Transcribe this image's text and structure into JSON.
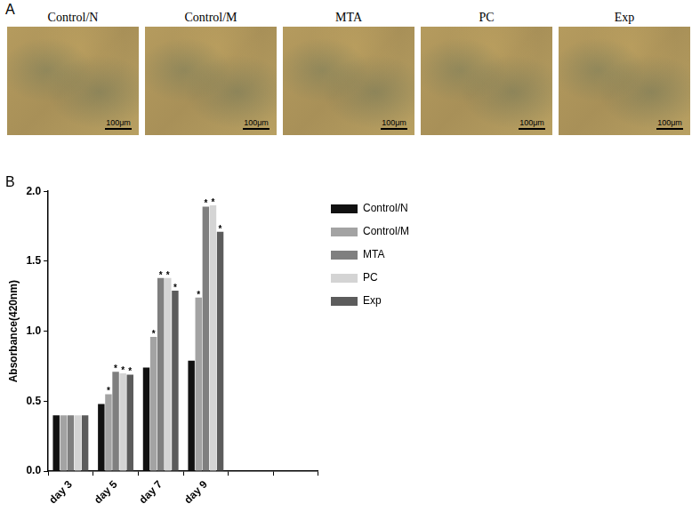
{
  "panel_labels": [
    "A",
    "B"
  ],
  "panel_a": {
    "images": [
      {
        "label": "Control/N",
        "scale_bar": "100μm"
      },
      {
        "label": "Control/M",
        "scale_bar": "100μm"
      },
      {
        "label": "MTA",
        "scale_bar": "100μm"
      },
      {
        "label": "PC",
        "scale_bar": "100μm"
      },
      {
        "label": "Exp",
        "scale_bar": "100μm"
      }
    ]
  },
  "chart_data": {
    "type": "bar",
    "y_label": "Absorbance(420nm)",
    "categories": [
      "day 3",
      "day 5",
      "day 7",
      "day 9",
      null,
      null
    ],
    "series": [
      {
        "name": "Control/N",
        "color": "#111111",
        "values": [
          0.4,
          0.48,
          0.74,
          0.79,
          null,
          null
        ]
      },
      {
        "name": "Control/M",
        "color": "#a3a3a3",
        "values": [
          0.4,
          0.55,
          0.96,
          1.24,
          null,
          null
        ],
        "significance": [
          null,
          "*",
          "*",
          "*",
          null,
          null
        ]
      },
      {
        "name": "MTA",
        "color": "#7f7f7f",
        "values": [
          0.4,
          0.71,
          1.38,
          1.89,
          null,
          null
        ],
        "significance": [
          null,
          "*",
          "*",
          "*",
          null,
          null
        ]
      },
      {
        "name": "PC",
        "color": "#d4d4d4",
        "values": [
          0.4,
          0.7,
          1.38,
          1.9,
          null,
          null
        ],
        "significance": [
          null,
          "*",
          "*",
          "*",
          null,
          null
        ]
      },
      {
        "name": "Exp",
        "color": "#5c5c5c",
        "values": [
          0.4,
          0.69,
          1.29,
          1.71,
          null,
          null
        ],
        "significance": [
          null,
          "*",
          "*",
          "*",
          null,
          null
        ]
      }
    ],
    "ylim": [
      0,
      2
    ],
    "yticks": [
      {
        "value": 0,
        "label": "0.0"
      },
      0.5,
      {
        "value": 1,
        "label": "1.0"
      },
      1.5,
      {
        "value": 2,
        "label": "2.0"
      }
    ],
    "grid": false,
    "legend": "right"
  }
}
